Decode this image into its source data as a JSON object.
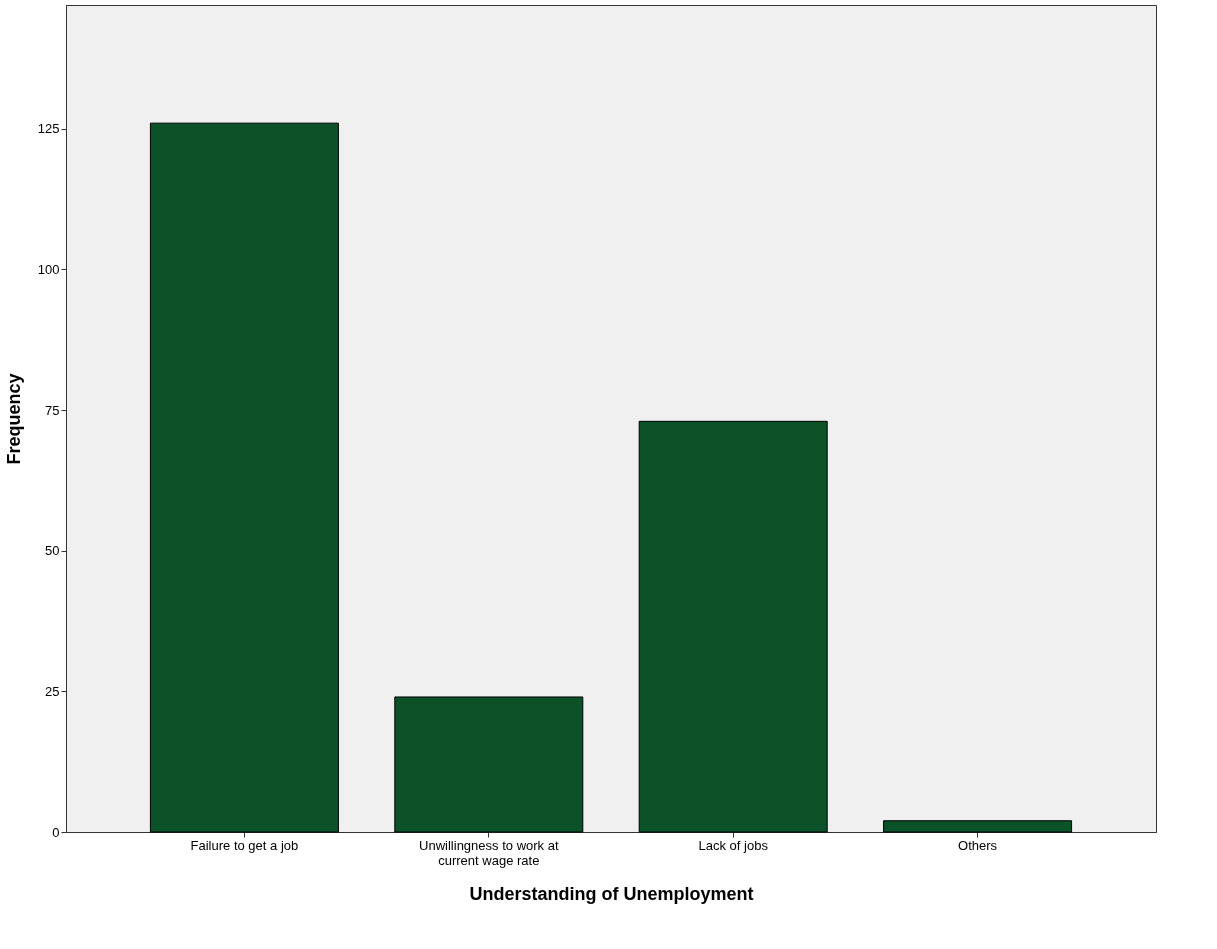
{
  "chart_data": {
    "type": "bar",
    "xlabel": "Understanding of Unemployment",
    "ylabel": "Frequency",
    "categories": [
      "Failure to get a job",
      "Unwillingness to work at current wage rate",
      "Lack of jobs",
      "Others"
    ],
    "values": [
      126,
      24,
      73,
      2
    ],
    "color": "#0b5229",
    "ylim": [
      0,
      147
    ],
    "yticks": [
      0,
      25,
      50,
      75,
      100,
      125
    ],
    "grid": false
  }
}
